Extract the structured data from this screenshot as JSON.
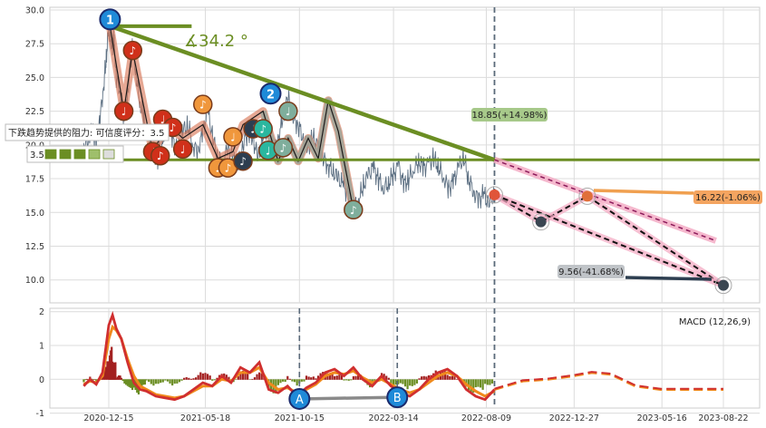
{
  "chart_data": [
    {
      "type": "line",
      "name_panel": "price",
      "x_tick_labels": [
        "2020-12-15",
        "2021-05-18",
        "2021-10-15",
        "2022-03-14",
        "2022-08-09",
        "2022-12-27",
        "2023-05-16",
        "2023-08-22"
      ],
      "y_ticks": [
        10.0,
        12.5,
        15.0,
        17.5,
        20.0,
        22.5,
        25.0,
        27.5,
        30.0
      ],
      "y_tick_labels": [
        "10.0",
        "12.5",
        "15.0",
        "17.5",
        "20.0",
        "22.5",
        "25.0",
        "27.5",
        "30.0"
      ],
      "ylim": [
        8.3,
        30.2
      ],
      "xlim_days": [
        0,
        1000
      ],
      "tick_days": [
        0,
        154,
        304,
        454,
        602,
        742,
        882,
        980
      ],
      "current_day": 615,
      "grid": true,
      "price_series": {
        "days": [
          -40,
          -32,
          -26,
          -20,
          -14,
          -8,
          -4,
          0,
          4,
          8,
          12,
          18,
          24,
          30,
          34,
          38,
          44,
          50,
          56,
          62,
          70,
          78,
          86,
          94,
          102,
          110,
          118,
          126,
          134,
          142,
          150,
          158,
          166,
          174,
          182,
          190,
          198,
          206,
          214,
          222,
          230,
          238,
          246,
          254,
          262,
          270,
          278,
          286,
          294,
          302,
          310,
          318,
          326,
          334,
          342,
          350,
          358,
          366,
          374,
          382,
          390,
          398,
          406,
          414,
          422,
          430,
          438,
          446,
          454,
          462,
          470,
          478,
          486,
          494,
          502,
          510,
          518,
          526,
          534,
          542,
          550,
          558,
          566,
          574,
          582,
          590,
          598,
          606,
          615
        ],
        "values": [
          19.8,
          20.5,
          21.0,
          20.0,
          22.0,
          24.5,
          26.5,
          28.8,
          27.0,
          28.0,
          25.0,
          24.0,
          22.0,
          23.5,
          26.0,
          27.2,
          25.0,
          23.0,
          22.0,
          20.5,
          19.5,
          19.0,
          20.5,
          21.5,
          20.5,
          19.5,
          21.0,
          21.5,
          20.0,
          19.5,
          21.0,
          22.5,
          20.5,
          19.0,
          18.5,
          20.0,
          19.0,
          18.3,
          20.0,
          21.0,
          20.5,
          19.0,
          20.5,
          21.5,
          19.5,
          20.5,
          22.0,
          23.5,
          22.0,
          21.5,
          20.5,
          19.8,
          20.5,
          19.8,
          19.0,
          18.5,
          18.0,
          17.5,
          17.0,
          16.3,
          15.5,
          15.8,
          17.0,
          17.8,
          18.3,
          17.5,
          16.8,
          17.2,
          17.8,
          18.5,
          17.0,
          17.5,
          18.2,
          18.8,
          18.3,
          18.6,
          19.0,
          18.4,
          17.6,
          16.8,
          17.3,
          18.4,
          19.0,
          17.5,
          16.5,
          16.0,
          16.3,
          15.6,
          16.4
        ]
      },
      "trendline_down_start": {
        "day": 2,
        "value": 28.8
      },
      "trendline_down_end": {
        "day": 615,
        "value": 18.9
      },
      "horizontal_line": {
        "value": 18.9
      },
      "angle_label": "∡34.2 °",
      "support_label": "下跌趋势提供的阻力: 可信度评分：3.5",
      "rating_value": "3.5",
      "marker_1": "1",
      "marker_2": "2",
      "note_symbol": "♪",
      "note_symbol_alt": "♩",
      "forecasts": [
        {
          "label": "18.85(+14.98%)",
          "color": "#a7c98a"
        },
        {
          "label": "16.22(-1.06%)",
          "color": "#f4a460"
        },
        {
          "label": "9.56(-41.68%)",
          "color": "#c0c4c8"
        }
      ],
      "forecast_points": [
        {
          "day": 615,
          "value": 16.3
        },
        {
          "day": 689,
          "value": 14.3
        },
        {
          "day": 763,
          "value": 16.2
        },
        {
          "day": 980,
          "value": 9.6
        }
      ],
      "forecast_channel_end": {
        "day": 968,
        "value": 12.9
      }
    },
    {
      "type": "line",
      "name_panel": "macd",
      "title": "MACD (12,26,9)",
      "y_ticks": [
        -1,
        0,
        1,
        2
      ],
      "y_tick_labels": [
        "-1",
        "0",
        "1",
        "2"
      ],
      "ylim": [
        -0.85,
        2.1
      ],
      "macd_days": [
        -40,
        -30,
        -20,
        -10,
        0,
        6,
        12,
        20,
        30,
        40,
        50,
        60,
        75,
        90,
        105,
        120,
        135,
        150,
        165,
        180,
        195,
        210,
        225,
        240,
        255,
        270,
        285,
        300,
        315,
        330,
        345,
        360,
        375,
        390,
        405,
        420,
        435,
        450,
        465,
        480,
        495,
        510,
        525,
        540,
        555,
        570,
        585,
        600,
        615
      ],
      "macd_values": [
        -0.2,
        0.0,
        -0.15,
        0.2,
        1.6,
        1.9,
        1.5,
        1.2,
        0.5,
        -0.1,
        -0.3,
        -0.35,
        -0.5,
        -0.55,
        -0.6,
        -0.5,
        -0.3,
        -0.1,
        -0.2,
        0.1,
        -0.1,
        0.35,
        0.2,
        0.5,
        -0.3,
        -0.4,
        -0.2,
        -0.5,
        -0.25,
        -0.1,
        0.2,
        0.3,
        0.1,
        0.35,
        0.0,
        -0.2,
        0.1,
        -0.2,
        -0.4,
        -0.5,
        -0.3,
        0.0,
        0.2,
        0.3,
        0.1,
        -0.3,
        -0.5,
        -0.6,
        -0.3
      ],
      "signal_values": [
        -0.15,
        -0.05,
        -0.1,
        0.1,
        1.2,
        1.55,
        1.45,
        1.2,
        0.6,
        0.1,
        -0.2,
        -0.3,
        -0.45,
        -0.5,
        -0.55,
        -0.5,
        -0.35,
        -0.2,
        -0.2,
        0.0,
        -0.05,
        0.2,
        0.2,
        0.35,
        -0.1,
        -0.3,
        -0.25,
        -0.4,
        -0.3,
        -0.15,
        0.1,
        0.2,
        0.15,
        0.25,
        0.05,
        -0.1,
        0.0,
        -0.15,
        -0.3,
        -0.4,
        -0.3,
        -0.1,
        0.1,
        0.2,
        0.1,
        -0.15,
        -0.35,
        -0.5,
        -0.35
      ],
      "forecast_days": [
        615,
        660,
        700,
        740,
        770,
        800,
        840,
        880,
        920,
        960,
        980
      ],
      "forecast_values": [
        -0.3,
        -0.05,
        0.0,
        0.1,
        0.2,
        0.15,
        -0.2,
        -0.3,
        -0.3,
        -0.3,
        -0.3
      ],
      "divergence_labels": [
        "A",
        "B"
      ],
      "divergence_points": [
        {
          "day": 304,
          "value": -0.5
        },
        {
          "day": 460,
          "value": -0.45
        }
      ]
    }
  ]
}
